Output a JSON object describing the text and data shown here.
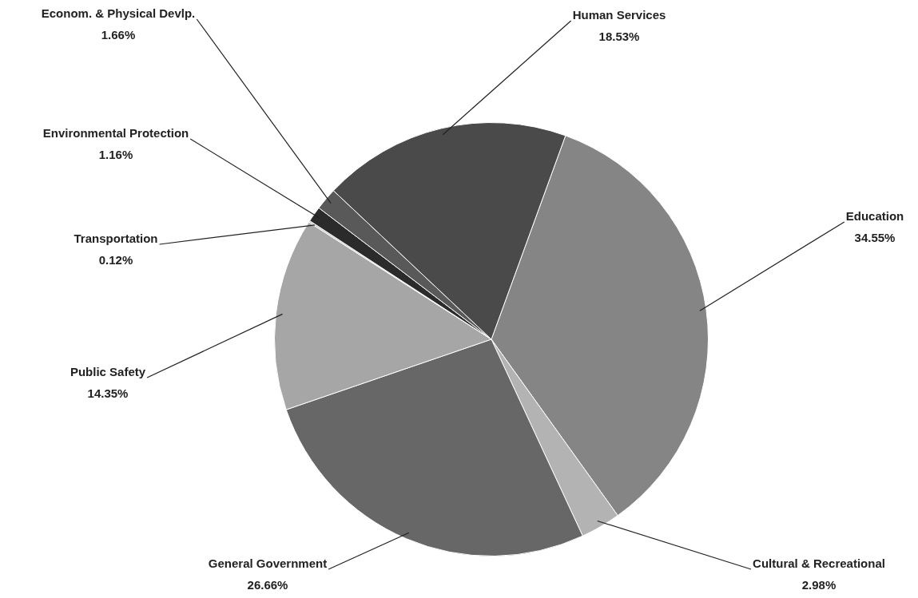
{
  "chart_data": {
    "type": "pie",
    "categories": [
      "Education",
      "Cultural & Recreational",
      "General Government",
      "Public Safety",
      "Transportation",
      "Environmental Protection",
      "Econom. & Physical Devlp.",
      "Human Services"
    ],
    "values": [
      34.55,
      2.98,
      26.66,
      14.35,
      0.12,
      1.16,
      1.66,
      18.53
    ],
    "colors": [
      "#858585",
      "#b3b3b3",
      "#676767",
      "#a6a6a6",
      "#c4c4c4",
      "#2b2b2b",
      "#595959",
      "#4a4a4a"
    ],
    "value_labels": [
      "34.55%",
      "2.98%",
      "26.66%",
      "14.35%",
      "0.12%",
      "1.16%",
      "1.66%",
      "18.53%"
    ],
    "legend": false
  }
}
